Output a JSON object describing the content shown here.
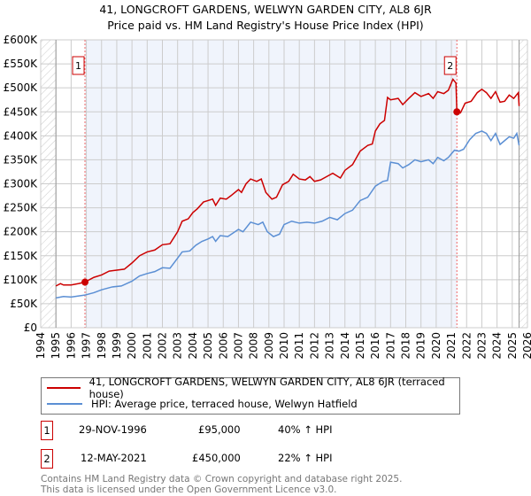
{
  "chart_data": {
    "type": "line",
    "title": "41, LONGCROFT GARDENS, WELWYN GARDEN CITY, AL8 6JR",
    "subtitle": "Price paid vs. HM Land Registry's House Price Index (HPI)",
    "xlim": [
      1994,
      2026
    ],
    "ylim": [
      0,
      600000
    ],
    "x_ticks": [
      "1994",
      "1995",
      "1996",
      "1997",
      "1998",
      "1999",
      "2000",
      "2001",
      "2002",
      "2003",
      "2004",
      "2005",
      "2006",
      "2007",
      "2008",
      "2009",
      "2010",
      "2011",
      "2012",
      "2013",
      "2014",
      "2015",
      "2016",
      "2017",
      "2018",
      "2019",
      "2020",
      "2021",
      "2022",
      "2023",
      "2024",
      "2025",
      "2026"
    ],
    "y_ticks": [
      {
        "v": 0,
        "label": "£0"
      },
      {
        "v": 50000,
        "label": "£50K"
      },
      {
        "v": 100000,
        "label": "£100K"
      },
      {
        "v": 150000,
        "label": "£150K"
      },
      {
        "v": 200000,
        "label": "£200K"
      },
      {
        "v": 250000,
        "label": "£250K"
      },
      {
        "v": 300000,
        "label": "£300K"
      },
      {
        "v": 350000,
        "label": "£350K"
      },
      {
        "v": 400000,
        "label": "£400K"
      },
      {
        "v": 450000,
        "label": "£450K"
      },
      {
        "v": 500000,
        "label": "£500K"
      },
      {
        "v": 550000,
        "label": "£550K"
      },
      {
        "v": 600000,
        "label": "£600K"
      }
    ],
    "grid": true,
    "data_range": [
      1995,
      2025.45
    ],
    "series": [
      {
        "name": "41, LONGCROFT GARDENS, WELWYN GARDEN CITY, AL8 6JR (terraced house)",
        "color": "#cc0000",
        "points": [
          [
            1995,
            87
          ],
          [
            1995.3,
            92
          ],
          [
            1995.5,
            89
          ],
          [
            1996,
            89
          ],
          [
            1996.5,
            92
          ],
          [
            1996.9,
            95
          ],
          [
            1997.5,
            105
          ],
          [
            1998,
            110
          ],
          [
            1998.5,
            118
          ],
          [
            1999,
            120
          ],
          [
            1999.5,
            122
          ],
          [
            2000,
            135
          ],
          [
            2000.5,
            150
          ],
          [
            2001,
            158
          ],
          [
            2001.5,
            162
          ],
          [
            2002,
            173
          ],
          [
            2002.5,
            175
          ],
          [
            2003,
            200
          ],
          [
            2003.3,
            222
          ],
          [
            2003.7,
            227
          ],
          [
            2004,
            240
          ],
          [
            2004.3,
            248
          ],
          [
            2004.7,
            262
          ],
          [
            2005,
            265
          ],
          [
            2005.3,
            268
          ],
          [
            2005.5,
            255
          ],
          [
            2005.8,
            270
          ],
          [
            2006.2,
            268
          ],
          [
            2006.5,
            275
          ],
          [
            2007,
            288
          ],
          [
            2007.2,
            282
          ],
          [
            2007.5,
            300
          ],
          [
            2007.8,
            310
          ],
          [
            2008.2,
            305
          ],
          [
            2008.5,
            310
          ],
          [
            2008.8,
            282
          ],
          [
            2009.2,
            268
          ],
          [
            2009.5,
            272
          ],
          [
            2009.9,
            298
          ],
          [
            2010.3,
            305
          ],
          [
            2010.6,
            320
          ],
          [
            2011,
            310
          ],
          [
            2011.4,
            308
          ],
          [
            2011.7,
            315
          ],
          [
            2012,
            305
          ],
          [
            2012.4,
            308
          ],
          [
            2012.8,
            315
          ],
          [
            2013.2,
            322
          ],
          [
            2013.7,
            312
          ],
          [
            2014,
            328
          ],
          [
            2014.5,
            340
          ],
          [
            2015,
            368
          ],
          [
            2015.5,
            380
          ],
          [
            2015.8,
            383
          ],
          [
            2016,
            410
          ],
          [
            2016.3,
            425
          ],
          [
            2016.6,
            432
          ],
          [
            2016.8,
            480
          ],
          [
            2017,
            475
          ],
          [
            2017.5,
            478
          ],
          [
            2017.8,
            465
          ],
          [
            2018.2,
            478
          ],
          [
            2018.6,
            490
          ],
          [
            2019,
            482
          ],
          [
            2019.5,
            488
          ],
          [
            2019.8,
            478
          ],
          [
            2020.1,
            492
          ],
          [
            2020.5,
            488
          ],
          [
            2020.8,
            495
          ],
          [
            2021.1,
            518
          ],
          [
            2021.3,
            510
          ],
          [
            2021.36,
            450
          ],
          [
            2021.6,
            448
          ],
          [
            2021.9,
            468
          ],
          [
            2022.3,
            472
          ],
          [
            2022.7,
            490
          ],
          [
            2023,
            497
          ],
          [
            2023.3,
            490
          ],
          [
            2023.6,
            478
          ],
          [
            2023.9,
            492
          ],
          [
            2024.2,
            470
          ],
          [
            2024.5,
            472
          ],
          [
            2024.8,
            485
          ],
          [
            2025.1,
            478
          ],
          [
            2025.4,
            490
          ],
          [
            2025.45,
            462
          ]
        ]
      },
      {
        "name": "HPI: Average price, terraced house, Welwyn Hatfield",
        "color": "#5b8fd4",
        "points": [
          [
            1995,
            62
          ],
          [
            1995.5,
            65
          ],
          [
            1996,
            64
          ],
          [
            1996.9,
            68
          ],
          [
            1997.5,
            73
          ],
          [
            1998,
            79
          ],
          [
            1998.7,
            85
          ],
          [
            1999.3,
            87
          ],
          [
            2000,
            97
          ],
          [
            2000.5,
            108
          ],
          [
            2001,
            113
          ],
          [
            2001.5,
            117
          ],
          [
            2002,
            125
          ],
          [
            2002.5,
            124
          ],
          [
            2003,
            145
          ],
          [
            2003.3,
            158
          ],
          [
            2003.8,
            160
          ],
          [
            2004.2,
            172
          ],
          [
            2004.6,
            180
          ],
          [
            2005,
            185
          ],
          [
            2005.3,
            190
          ],
          [
            2005.5,
            180
          ],
          [
            2005.8,
            192
          ],
          [
            2006.3,
            190
          ],
          [
            2007,
            205
          ],
          [
            2007.3,
            200
          ],
          [
            2007.8,
            220
          ],
          [
            2008.3,
            215
          ],
          [
            2008.6,
            220
          ],
          [
            2008.9,
            200
          ],
          [
            2009.3,
            190
          ],
          [
            2009.7,
            195
          ],
          [
            2010,
            215
          ],
          [
            2010.5,
            222
          ],
          [
            2011,
            218
          ],
          [
            2011.5,
            220
          ],
          [
            2012,
            218
          ],
          [
            2012.5,
            222
          ],
          [
            2013,
            230
          ],
          [
            2013.5,
            225
          ],
          [
            2014,
            238
          ],
          [
            2014.5,
            245
          ],
          [
            2015,
            265
          ],
          [
            2015.5,
            272
          ],
          [
            2016,
            295
          ],
          [
            2016.5,
            305
          ],
          [
            2016.8,
            307
          ],
          [
            2017,
            345
          ],
          [
            2017.5,
            342
          ],
          [
            2017.8,
            333
          ],
          [
            2018.2,
            340
          ],
          [
            2018.6,
            350
          ],
          [
            2019,
            346
          ],
          [
            2019.5,
            350
          ],
          [
            2019.8,
            342
          ],
          [
            2020.1,
            355
          ],
          [
            2020.5,
            348
          ],
          [
            2020.8,
            355
          ],
          [
            2021.2,
            370
          ],
          [
            2021.5,
            368
          ],
          [
            2021.8,
            372
          ],
          [
            2022.2,
            392
          ],
          [
            2022.6,
            405
          ],
          [
            2023,
            410
          ],
          [
            2023.3,
            405
          ],
          [
            2023.6,
            390
          ],
          [
            2023.9,
            405
          ],
          [
            2024.2,
            382
          ],
          [
            2024.5,
            390
          ],
          [
            2024.8,
            398
          ],
          [
            2025.1,
            395
          ],
          [
            2025.3,
            405
          ],
          [
            2025.45,
            380
          ]
        ]
      }
    ],
    "sales": [
      {
        "id": "1",
        "x": 1996.91,
        "price": 95000,
        "date": "29-NOV-1996",
        "price_label": "£95,000",
        "hpi": "40% ↑ HPI"
      },
      {
        "id": "2",
        "x": 2021.36,
        "price": 450000,
        "date": "12-MAY-2021",
        "price_label": "£450,000",
        "hpi": "22% ↑ HPI"
      }
    ]
  },
  "legend": {
    "red": "41, LONGCROFT GARDENS, WELWYN GARDEN CITY, AL8 6JR (terraced house)",
    "blue": "HPI: Average price, terraced house, Welwyn Hatfield"
  },
  "footer": {
    "line1": "Contains HM Land Registry data © Crown copyright and database right 2025.",
    "line2": "This data is licensed under the Open Government Licence v3.0."
  }
}
